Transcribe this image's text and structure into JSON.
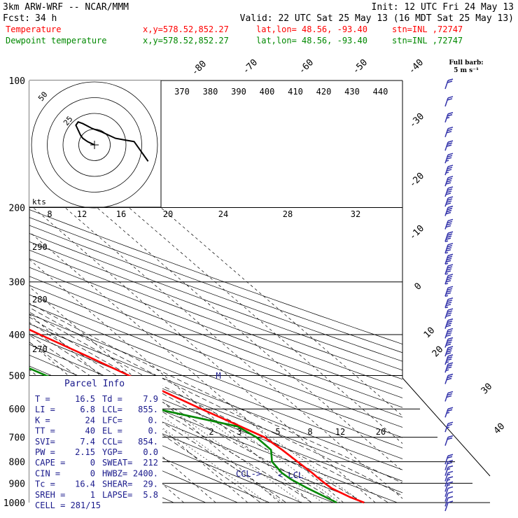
{
  "header": {
    "model": "3km ARW-WRF -- NCAR/MMM",
    "init": "Init: 12 UTC Fri 24 May 13",
    "fcst_label": "Fcst:",
    "fcst_hours": "34 h",
    "valid": "Valid: 22 UTC Sat 25 May 13 (16 MDT Sat 25 May 13)"
  },
  "legend": [
    {
      "label": "Temperature",
      "coords": "x,y=578.52,852.27",
      "latlon": "lat,lon= 48.56, -93.40",
      "stn": "stn=INL ,72747",
      "color": "#ff0000"
    },
    {
      "label": "Dewpoint temperature",
      "coords": "x,y=578.52,852.27",
      "latlon": "lat,lon= 48.56, -93.40",
      "stn": "stn=INL ,72747",
      "color": "#008800"
    }
  ],
  "barb_note": {
    "line1": "Full barb:",
    "line2": "5 m s⁻¹"
  },
  "parcel_info": {
    "title": "Parcel Info",
    "rows": [
      [
        "T  =",
        "16.5",
        "Td =",
        "7.9"
      ],
      [
        "LI =",
        "6.8",
        "LCL=",
        "855."
      ],
      [
        "K  =",
        "24",
        "LFC=",
        "0."
      ],
      [
        "TT =",
        "40",
        "EL =",
        "0."
      ],
      [
        "SVI=",
        "7.4",
        "CCL=",
        "854."
      ],
      [
        "PW =",
        "2.15",
        "YGP=",
        "0.0"
      ],
      [
        "CAPE =",
        "0",
        "SWEAT=",
        "212"
      ],
      [
        "CIN  =",
        "0",
        "HWBZ=",
        "2400."
      ],
      [
        "Tc   =",
        "16.4",
        "SHEAR=",
        "29."
      ],
      [
        "SREH =",
        "1",
        "LAPSE=",
        "5.8"
      ]
    ],
    "cell": "CELL = 281/15"
  },
  "hodograph": {
    "ring_labels": [
      "25",
      "50"
    ],
    "axis_label": "kts",
    "points_kts": [
      [
        0,
        0
      ],
      [
        -3,
        2
      ],
      [
        -5,
        4
      ],
      [
        -6,
        6
      ],
      [
        -7,
        9
      ],
      [
        -8,
        12
      ],
      [
        -7,
        14
      ],
      [
        -5,
        13
      ],
      [
        -1,
        10
      ],
      [
        3,
        8
      ],
      [
        6,
        6
      ],
      [
        9,
        4
      ],
      [
        13,
        3
      ],
      [
        17,
        2
      ],
      [
        19,
        -2
      ],
      [
        21,
        -6
      ],
      [
        23,
        -10
      ]
    ]
  },
  "colors": {
    "temperature": "#ff0000",
    "dewpoint": "#008800",
    "barbs": "#3333aa",
    "parcel_text": "#1a1a8c",
    "grid": "#000000"
  },
  "chart_data": {
    "type": "line",
    "title": "",
    "ylabel": "Pressure (hPa)",
    "yscale": "log",
    "ylim": [
      1000,
      100
    ],
    "pressure_ticks": [
      100,
      200,
      300,
      400,
      500,
      600,
      700,
      800,
      900,
      1000
    ],
    "mixing_ratio_labels": [
      2,
      3,
      5,
      8,
      12,
      20
    ],
    "theta_top_labels": [
      370,
      380,
      390,
      400,
      410,
      420,
      430,
      440
    ],
    "theta_side_labels": [
      290,
      280,
      270
    ],
    "thetae_bottom_labels": [
      8,
      12,
      16,
      20,
      24,
      28,
      32
    ],
    "temp_labels": [
      -80,
      -70,
      -60,
      -50,
      -40,
      -30,
      -20,
      -10,
      0,
      10,
      20,
      30,
      40
    ],
    "annotations": [
      "CCL->",
      "<-LCL",
      "M"
    ],
    "series": [
      {
        "name": "Temperature",
        "points": [
          [
            1000,
            16.5
          ],
          [
            970,
            14.0
          ],
          [
            925,
            11.5
          ],
          [
            900,
            11.2
          ],
          [
            870,
            11.0
          ],
          [
            850,
            11.0
          ],
          [
            800,
            10.5
          ],
          [
            750,
            10.0
          ],
          [
            700,
            9.0
          ],
          [
            650,
            4.5
          ],
          [
            600,
            -0.5
          ],
          [
            550,
            -5.5
          ],
          [
            500,
            -11.0
          ],
          [
            450,
            -17.0
          ],
          [
            400,
            -24.0
          ],
          [
            350,
            -31.5
          ],
          [
            300,
            -40.5
          ],
          [
            250,
            -50.5
          ],
          [
            230,
            -54.0
          ],
          [
            200,
            -57.0
          ],
          [
            180,
            -56.0
          ],
          [
            160,
            -57.0
          ],
          [
            140,
            -58.0
          ],
          [
            120,
            -61.0
          ],
          [
            100,
            -66.0
          ]
        ]
      },
      {
        "name": "Dewpoint temperature",
        "points": [
          [
            1000,
            7.9
          ],
          [
            925,
            4.0
          ],
          [
            880,
            2.0
          ],
          [
            850,
            1.5
          ],
          [
            800,
            2.5
          ],
          [
            750,
            6.5
          ],
          [
            700,
            6.5
          ],
          [
            660,
            4.5
          ],
          [
            620,
            -8.0
          ],
          [
            560,
            -28.0
          ],
          [
            500,
            -37.0
          ],
          [
            450,
            -44.0
          ],
          [
            400,
            -50.0
          ],
          [
            350,
            -51.0
          ],
          [
            300,
            -55.0
          ],
          [
            250,
            -62.5
          ],
          [
            200,
            -70.0
          ],
          [
            150,
            -76.5
          ],
          [
            120,
            -82.0
          ],
          [
            100,
            -88.0
          ]
        ]
      }
    ],
    "wind_barbs": [
      {
        "p": 1000,
        "speed_ms": 5
      },
      {
        "p": 975,
        "speed_ms": 6
      },
      {
        "p": 950,
        "speed_ms": 7
      },
      {
        "p": 925,
        "speed_ms": 7
      },
      {
        "p": 900,
        "speed_ms": 8
      },
      {
        "p": 875,
        "speed_ms": 8
      },
      {
        "p": 850,
        "speed_ms": 9
      },
      {
        "p": 825,
        "speed_ms": 9
      },
      {
        "p": 800,
        "speed_ms": 10
      },
      {
        "p": 775,
        "speed_ms": 10
      },
      {
        "p": 700,
        "speed_ms": 12
      },
      {
        "p": 650,
        "speed_ms": 13
      },
      {
        "p": 600,
        "speed_ms": 14
      },
      {
        "p": 550,
        "speed_ms": 15
      },
      {
        "p": 500,
        "speed_ms": 17
      },
      {
        "p": 470,
        "speed_ms": 18
      },
      {
        "p": 450,
        "speed_ms": 19
      },
      {
        "p": 430,
        "speed_ms": 20
      },
      {
        "p": 410,
        "speed_ms": 20
      },
      {
        "p": 390,
        "speed_ms": 21
      },
      {
        "p": 370,
        "speed_ms": 22
      },
      {
        "p": 350,
        "speed_ms": 22
      },
      {
        "p": 330,
        "speed_ms": 23
      },
      {
        "p": 310,
        "speed_ms": 23
      },
      {
        "p": 290,
        "speed_ms": 24
      },
      {
        "p": 275,
        "speed_ms": 24
      },
      {
        "p": 260,
        "speed_ms": 24
      },
      {
        "p": 245,
        "speed_ms": 23
      },
      {
        "p": 230,
        "speed_ms": 23
      },
      {
        "p": 215,
        "speed_ms": 22
      },
      {
        "p": 200,
        "speed_ms": 22
      },
      {
        "p": 190,
        "speed_ms": 21
      },
      {
        "p": 180,
        "speed_ms": 21
      },
      {
        "p": 170,
        "speed_ms": 20
      },
      {
        "p": 160,
        "speed_ms": 19
      },
      {
        "p": 150,
        "speed_ms": 18
      },
      {
        "p": 140,
        "speed_ms": 17
      },
      {
        "p": 130,
        "speed_ms": 16
      },
      {
        "p": 120,
        "speed_ms": 14
      },
      {
        "p": 110,
        "speed_ms": 12
      },
      {
        "p": 100,
        "speed_ms": 10
      }
    ]
  }
}
